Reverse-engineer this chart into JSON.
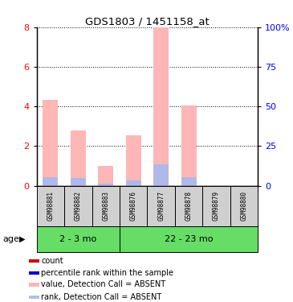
{
  "title": "GDS1803 / 1451158_at",
  "samples": [
    "GSM98881",
    "GSM98882",
    "GSM98883",
    "GSM98876",
    "GSM98877",
    "GSM98878",
    "GSM98879",
    "GSM98880"
  ],
  "groups": [
    {
      "label": "2 - 3 mo",
      "indices": [
        0,
        1,
        2
      ]
    },
    {
      "label": "22 - 23 mo",
      "indices": [
        3,
        4,
        5,
        6,
        7
      ]
    }
  ],
  "bar_values": [
    4.35,
    2.8,
    1.0,
    2.55,
    8.0,
    4.05,
    0.0,
    0.0
  ],
  "rank_values": [
    0.45,
    0.38,
    0.1,
    0.28,
    1.1,
    0.42,
    0.0,
    0.0
  ],
  "bar_color_absent": "#ffb6b6",
  "rank_color_absent": "#b0b8e8",
  "sample_bg_color": "#d0d0d0",
  "group_color": "#66dd66",
  "ylim_left": [
    0,
    8
  ],
  "ylim_right": [
    0,
    100
  ],
  "yticks_left": [
    0,
    2,
    4,
    6,
    8
  ],
  "yticks_right": [
    0,
    25,
    50,
    75,
    100
  ],
  "ytick_labels_right": [
    "0",
    "25",
    "50",
    "75",
    "100%"
  ],
  "legend_items": [
    {
      "color": "#cc0000",
      "label": "count"
    },
    {
      "color": "#0000cc",
      "label": "percentile rank within the sample"
    },
    {
      "color": "#ffb6b6",
      "label": "value, Detection Call = ABSENT"
    },
    {
      "color": "#b0c0e8",
      "label": "rank, Detection Call = ABSENT"
    }
  ],
  "age_label": "age"
}
